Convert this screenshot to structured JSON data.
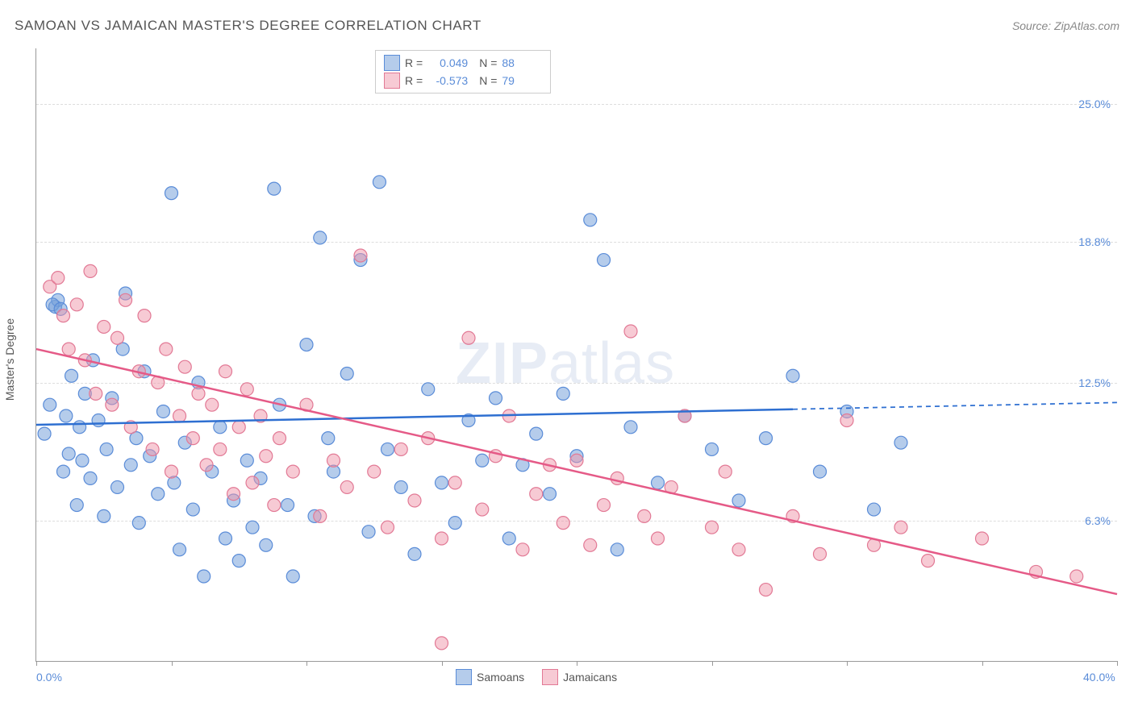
{
  "title": "SAMOAN VS JAMAICAN MASTER'S DEGREE CORRELATION CHART",
  "source": "Source: ZipAtlas.com",
  "y_axis_title": "Master's Degree",
  "watermark": {
    "zip": "ZIP",
    "atlas": "atlas"
  },
  "chart": {
    "type": "scatter",
    "background_color": "#ffffff",
    "grid_color": "#dddddd",
    "axis_color": "#999999",
    "xlim": [
      0,
      40
    ],
    "ylim": [
      0,
      27.5
    ],
    "x_ticks": [
      0,
      5,
      10,
      15,
      20,
      25,
      30,
      35,
      40
    ],
    "x_labels": [
      {
        "value": 0,
        "label": "0.0%"
      },
      {
        "value": 40,
        "label": "40.0%"
      }
    ],
    "y_gridlines": [
      {
        "value": 6.3,
        "label": "6.3%"
      },
      {
        "value": 12.5,
        "label": "12.5%"
      },
      {
        "value": 18.8,
        "label": "18.8%"
      },
      {
        "value": 25.0,
        "label": "25.0%"
      }
    ],
    "y_label_color": "#5a8cd8",
    "series": [
      {
        "name": "Samoans",
        "marker_color": "rgba(120,162,219,0.55)",
        "marker_border": "#5a8cd8",
        "marker_radius": 8,
        "points": [
          [
            0.3,
            10.2
          ],
          [
            0.5,
            11.5
          ],
          [
            0.7,
            15.9
          ],
          [
            0.8,
            16.2
          ],
          [
            0.6,
            16.0
          ],
          [
            0.9,
            15.8
          ],
          [
            1.0,
            8.5
          ],
          [
            1.1,
            11.0
          ],
          [
            1.2,
            9.3
          ],
          [
            1.3,
            12.8
          ],
          [
            1.5,
            7.0
          ],
          [
            1.6,
            10.5
          ],
          [
            1.7,
            9.0
          ],
          [
            1.8,
            12.0
          ],
          [
            2.0,
            8.2
          ],
          [
            2.1,
            13.5
          ],
          [
            2.3,
            10.8
          ],
          [
            2.5,
            6.5
          ],
          [
            2.6,
            9.5
          ],
          [
            2.8,
            11.8
          ],
          [
            3.0,
            7.8
          ],
          [
            3.2,
            14.0
          ],
          [
            3.3,
            16.5
          ],
          [
            3.5,
            8.8
          ],
          [
            3.7,
            10.0
          ],
          [
            3.8,
            6.2
          ],
          [
            4.0,
            13.0
          ],
          [
            4.2,
            9.2
          ],
          [
            4.5,
            7.5
          ],
          [
            4.7,
            11.2
          ],
          [
            5.0,
            21.0
          ],
          [
            5.1,
            8.0
          ],
          [
            5.3,
            5.0
          ],
          [
            5.5,
            9.8
          ],
          [
            5.8,
            6.8
          ],
          [
            6.0,
            12.5
          ],
          [
            6.2,
            3.8
          ],
          [
            6.5,
            8.5
          ],
          [
            6.8,
            10.5
          ],
          [
            7.0,
            5.5
          ],
          [
            7.3,
            7.2
          ],
          [
            7.5,
            4.5
          ],
          [
            7.8,
            9.0
          ],
          [
            8.0,
            6.0
          ],
          [
            8.3,
            8.2
          ],
          [
            8.5,
            5.2
          ],
          [
            8.8,
            21.2
          ],
          [
            9.0,
            11.5
          ],
          [
            9.3,
            7.0
          ],
          [
            9.5,
            3.8
          ],
          [
            10.0,
            14.2
          ],
          [
            10.3,
            6.5
          ],
          [
            10.5,
            19.0
          ],
          [
            10.8,
            10.0
          ],
          [
            11.0,
            8.5
          ],
          [
            11.5,
            12.9
          ],
          [
            12.0,
            18.0
          ],
          [
            12.3,
            5.8
          ],
          [
            12.7,
            21.5
          ],
          [
            13.0,
            9.5
          ],
          [
            13.5,
            7.8
          ],
          [
            14.0,
            4.8
          ],
          [
            14.5,
            12.2
          ],
          [
            15.0,
            8.0
          ],
          [
            15.5,
            6.2
          ],
          [
            16.0,
            10.8
          ],
          [
            16.5,
            9.0
          ],
          [
            17.0,
            11.8
          ],
          [
            17.5,
            5.5
          ],
          [
            18.0,
            8.8
          ],
          [
            18.5,
            10.2
          ],
          [
            19.0,
            7.5
          ],
          [
            19.5,
            12.0
          ],
          [
            20.0,
            9.2
          ],
          [
            20.5,
            19.8
          ],
          [
            21.0,
            18.0
          ],
          [
            21.5,
            5.0
          ],
          [
            22.0,
            10.5
          ],
          [
            23.0,
            8.0
          ],
          [
            24.0,
            11.0
          ],
          [
            25.0,
            9.5
          ],
          [
            26.0,
            7.2
          ],
          [
            27.0,
            10.0
          ],
          [
            28.0,
            12.8
          ],
          [
            29.0,
            8.5
          ],
          [
            30.0,
            11.2
          ],
          [
            31.0,
            6.8
          ],
          [
            32.0,
            9.8
          ]
        ]
      },
      {
        "name": "Jamaicans",
        "marker_color": "rgba(240,150,170,0.50)",
        "marker_border": "#e27995",
        "marker_radius": 8,
        "points": [
          [
            0.5,
            16.8
          ],
          [
            0.8,
            17.2
          ],
          [
            1.0,
            15.5
          ],
          [
            1.2,
            14.0
          ],
          [
            1.5,
            16.0
          ],
          [
            1.8,
            13.5
          ],
          [
            2.0,
            17.5
          ],
          [
            2.2,
            12.0
          ],
          [
            2.5,
            15.0
          ],
          [
            2.8,
            11.5
          ],
          [
            3.0,
            14.5
          ],
          [
            3.3,
            16.2
          ],
          [
            3.5,
            10.5
          ],
          [
            3.8,
            13.0
          ],
          [
            4.0,
            15.5
          ],
          [
            4.3,
            9.5
          ],
          [
            4.5,
            12.5
          ],
          [
            4.8,
            14.0
          ],
          [
            5.0,
            8.5
          ],
          [
            5.3,
            11.0
          ],
          [
            5.5,
            13.2
          ],
          [
            5.8,
            10.0
          ],
          [
            6.0,
            12.0
          ],
          [
            6.3,
            8.8
          ],
          [
            6.5,
            11.5
          ],
          [
            6.8,
            9.5
          ],
          [
            7.0,
            13.0
          ],
          [
            7.3,
            7.5
          ],
          [
            7.5,
            10.5
          ],
          [
            7.8,
            12.2
          ],
          [
            8.0,
            8.0
          ],
          [
            8.3,
            11.0
          ],
          [
            8.5,
            9.2
          ],
          [
            8.8,
            7.0
          ],
          [
            9.0,
            10.0
          ],
          [
            9.5,
            8.5
          ],
          [
            10.0,
            11.5
          ],
          [
            10.5,
            6.5
          ],
          [
            11.0,
            9.0
          ],
          [
            11.5,
            7.8
          ],
          [
            12.0,
            18.2
          ],
          [
            12.5,
            8.5
          ],
          [
            13.0,
            6.0
          ],
          [
            13.5,
            9.5
          ],
          [
            14.0,
            7.2
          ],
          [
            14.5,
            10.0
          ],
          [
            15.0,
            5.5
          ],
          [
            15.5,
            8.0
          ],
          [
            16.0,
            14.5
          ],
          [
            16.5,
            6.8
          ],
          [
            17.0,
            9.2
          ],
          [
            17.5,
            11.0
          ],
          [
            18.0,
            5.0
          ],
          [
            18.5,
            7.5
          ],
          [
            19.0,
            8.8
          ],
          [
            19.5,
            6.2
          ],
          [
            20.0,
            9.0
          ],
          [
            20.5,
            5.2
          ],
          [
            21.0,
            7.0
          ],
          [
            21.5,
            8.2
          ],
          [
            22.0,
            14.8
          ],
          [
            22.5,
            6.5
          ],
          [
            23.0,
            5.5
          ],
          [
            23.5,
            7.8
          ],
          [
            24.0,
            11.0
          ],
          [
            25.0,
            6.0
          ],
          [
            25.5,
            8.5
          ],
          [
            26.0,
            5.0
          ],
          [
            27.0,
            3.2
          ],
          [
            28.0,
            6.5
          ],
          [
            29.0,
            4.8
          ],
          [
            30.0,
            10.8
          ],
          [
            31.0,
            5.2
          ],
          [
            32.0,
            6.0
          ],
          [
            33.0,
            4.5
          ],
          [
            35.0,
            5.5
          ],
          [
            37.0,
            4.0
          ],
          [
            15.0,
            0.8
          ],
          [
            38.5,
            3.8
          ]
        ]
      }
    ],
    "trend_lines": [
      {
        "series": "Samoans",
        "color": "#2e6fd1",
        "width": 2.5,
        "solid": {
          "x1": 0,
          "y1": 10.6,
          "x2": 28,
          "y2": 11.3
        },
        "dashed": {
          "x1": 28,
          "y1": 11.3,
          "x2": 40,
          "y2": 11.6
        }
      },
      {
        "series": "Jamaicans",
        "color": "#e55a87",
        "width": 2.5,
        "solid": {
          "x1": 0,
          "y1": 14.0,
          "x2": 40,
          "y2": 3.0
        },
        "dashed": null
      }
    ],
    "stats_legend": [
      {
        "swatch_fill": "rgba(120,162,219,0.55)",
        "swatch_border": "#5a8cd8",
        "r_label": "R =",
        "r_value": "0.049",
        "n_label": "N =",
        "n_value": "88"
      },
      {
        "swatch_fill": "rgba(240,150,170,0.50)",
        "swatch_border": "#e27995",
        "r_label": "R =",
        "r_value": "-0.573",
        "n_label": "N =",
        "n_value": "79"
      }
    ],
    "bottom_legend": [
      {
        "swatch_fill": "rgba(120,162,219,0.55)",
        "swatch_border": "#5a8cd8",
        "label": "Samoans"
      },
      {
        "swatch_fill": "rgba(240,150,170,0.50)",
        "swatch_border": "#e27995",
        "label": "Jamaicans"
      }
    ]
  }
}
